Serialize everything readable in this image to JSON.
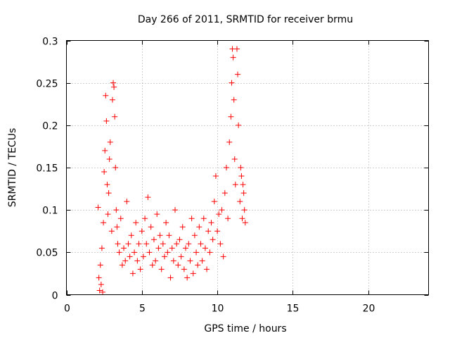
{
  "chart_data": {
    "type": "scatter",
    "title": "Day 266 of 2011, SRMTID for receiver brmu",
    "xlabel": "GPS time / hours",
    "ylabel": "SRMTID / TECUs",
    "xlim": [
      0,
      24
    ],
    "ylim": [
      0,
      0.3
    ],
    "xticks": [
      0,
      5,
      10,
      15,
      20
    ],
    "xtick_labels": [
      "0",
      "5",
      "10",
      "15",
      "20"
    ],
    "yticks": [
      0,
      0.05,
      0.1,
      0.15,
      0.2,
      0.25,
      0.3
    ],
    "ytick_labels": [
      "0",
      "0.05",
      "0.1",
      "0.15",
      "0.2",
      "0.25",
      "0.3"
    ],
    "grid": true,
    "marker": "+",
    "color": "#ff0000",
    "series": [
      {
        "name": "brmu",
        "points": [
          [
            2.1,
            0.103
          ],
          [
            2.15,
            0.02
          ],
          [
            2.2,
            0.005
          ],
          [
            2.25,
            0.035
          ],
          [
            2.3,
            0.012
          ],
          [
            2.35,
            0.055
          ],
          [
            2.4,
            0.003
          ],
          [
            2.45,
            0.085
          ],
          [
            2.5,
            0.145
          ],
          [
            2.55,
            0.17
          ],
          [
            2.6,
            0.235
          ],
          [
            2.65,
            0.205
          ],
          [
            2.7,
            0.13
          ],
          [
            2.75,
            0.095
          ],
          [
            2.8,
            0.12
          ],
          [
            2.85,
            0.16
          ],
          [
            2.9,
            0.18
          ],
          [
            3.0,
            0.075
          ],
          [
            3.05,
            0.23
          ],
          [
            3.1,
            0.25
          ],
          [
            3.15,
            0.245
          ],
          [
            3.2,
            0.21
          ],
          [
            3.25,
            0.15
          ],
          [
            3.3,
            0.1
          ],
          [
            3.35,
            0.08
          ],
          [
            3.4,
            0.06
          ],
          [
            3.5,
            0.05
          ],
          [
            3.6,
            0.09
          ],
          [
            3.7,
            0.035
          ],
          [
            3.8,
            0.055
          ],
          [
            3.9,
            0.04
          ],
          [
            4.0,
            0.11
          ],
          [
            4.1,
            0.06
          ],
          [
            4.2,
            0.045
          ],
          [
            4.3,
            0.07
          ],
          [
            4.4,
            0.025
          ],
          [
            4.5,
            0.05
          ],
          [
            4.6,
            0.085
          ],
          [
            4.7,
            0.04
          ],
          [
            4.8,
            0.06
          ],
          [
            4.9,
            0.03
          ],
          [
            5.0,
            0.075
          ],
          [
            5.1,
            0.045
          ],
          [
            5.2,
            0.09
          ],
          [
            5.3,
            0.06
          ],
          [
            5.4,
            0.115
          ],
          [
            5.5,
            0.05
          ],
          [
            5.6,
            0.08
          ],
          [
            5.7,
            0.035
          ],
          [
            5.8,
            0.065
          ],
          [
            5.9,
            0.04
          ],
          [
            6.0,
            0.095
          ],
          [
            6.1,
            0.055
          ],
          [
            6.2,
            0.07
          ],
          [
            6.3,
            0.03
          ],
          [
            6.4,
            0.06
          ],
          [
            6.5,
            0.045
          ],
          [
            6.6,
            0.085
          ],
          [
            6.7,
            0.05
          ],
          [
            6.8,
            0.07
          ],
          [
            6.9,
            0.02
          ],
          [
            7.0,
            0.055
          ],
          [
            7.1,
            0.04
          ],
          [
            7.2,
            0.1
          ],
          [
            7.3,
            0.06
          ],
          [
            7.4,
            0.035
          ],
          [
            7.5,
            0.065
          ],
          [
            7.6,
            0.045
          ],
          [
            7.7,
            0.08
          ],
          [
            7.8,
            0.03
          ],
          [
            7.9,
            0.055
          ],
          [
            8.0,
            0.02
          ],
          [
            8.1,
            0.06
          ],
          [
            8.2,
            0.04
          ],
          [
            8.3,
            0.09
          ],
          [
            8.4,
            0.025
          ],
          [
            8.5,
            0.07
          ],
          [
            8.6,
            0.05
          ],
          [
            8.7,
            0.035
          ],
          [
            8.8,
            0.08
          ],
          [
            8.9,
            0.06
          ],
          [
            9.0,
            0.04
          ],
          [
            9.1,
            0.09
          ],
          [
            9.2,
            0.055
          ],
          [
            9.3,
            0.03
          ],
          [
            9.4,
            0.075
          ],
          [
            9.5,
            0.05
          ],
          [
            9.6,
            0.085
          ],
          [
            9.7,
            0.065
          ],
          [
            9.8,
            0.11
          ],
          [
            9.9,
            0.14
          ],
          [
            10.0,
            0.075
          ],
          [
            10.1,
            0.095
          ],
          [
            10.2,
            0.06
          ],
          [
            10.3,
            0.1
          ],
          [
            10.4,
            0.045
          ],
          [
            10.5,
            0.12
          ],
          [
            10.6,
            0.15
          ],
          [
            10.7,
            0.09
          ],
          [
            10.8,
            0.18
          ],
          [
            10.9,
            0.21
          ],
          [
            10.95,
            0.25
          ],
          [
            11.0,
            0.29
          ],
          [
            11.05,
            0.28
          ],
          [
            11.1,
            0.23
          ],
          [
            11.15,
            0.16
          ],
          [
            11.2,
            0.13
          ],
          [
            11.3,
            0.29
          ],
          [
            11.35,
            0.26
          ],
          [
            11.4,
            0.2
          ],
          [
            11.5,
            0.11
          ],
          [
            11.55,
            0.15
          ],
          [
            11.6,
            0.14
          ],
          [
            11.65,
            0.09
          ],
          [
            11.7,
            0.13
          ],
          [
            11.75,
            0.12
          ],
          [
            11.8,
            0.1
          ],
          [
            11.85,
            0.085
          ]
        ]
      }
    ]
  }
}
